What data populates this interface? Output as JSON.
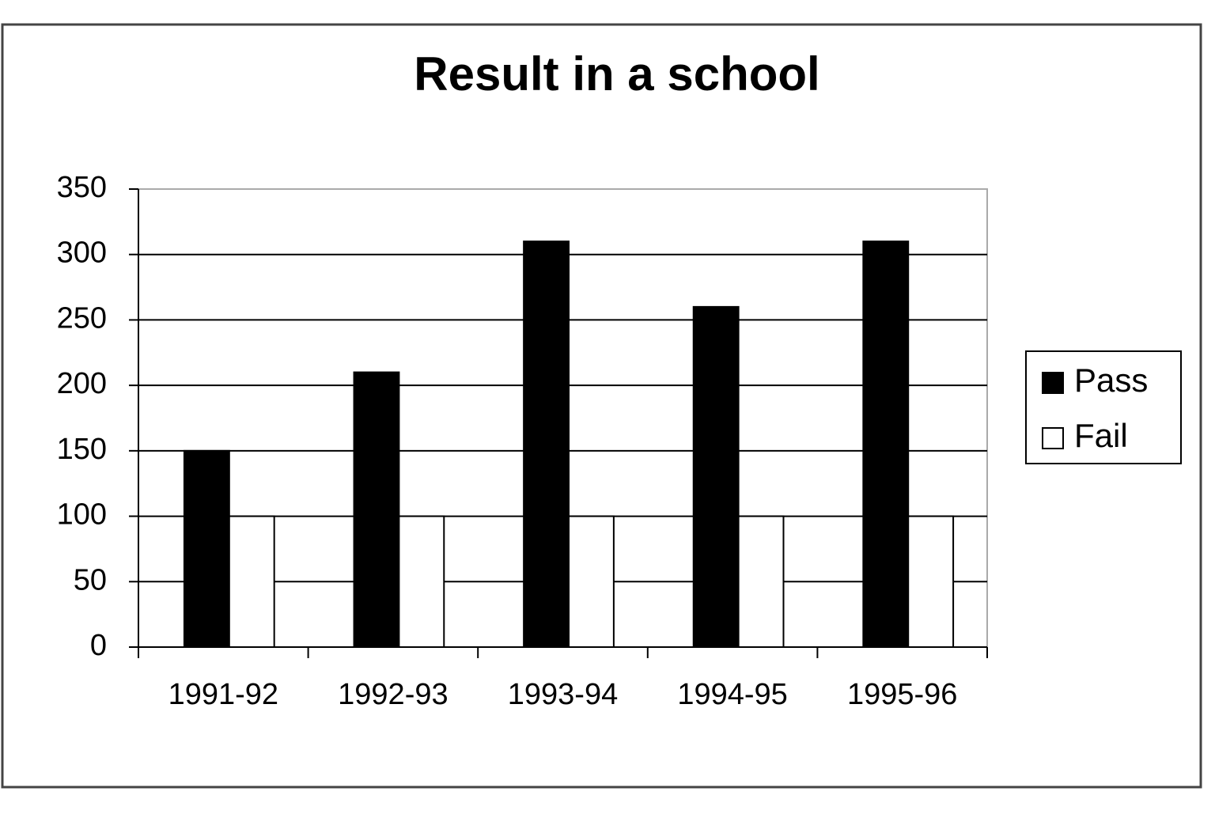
{
  "chart_data": {
    "type": "bar",
    "title": "Result in a school",
    "categories": [
      "1991-92",
      "1992-93",
      "1993-94",
      "1994-95",
      "1995-96"
    ],
    "series": [
      {
        "name": "Pass",
        "color": "#000000",
        "values": [
          150,
          210,
          310,
          260,
          310
        ]
      },
      {
        "name": "Fail",
        "color": "#ffffff",
        "values": [
          100,
          100,
          100,
          100,
          100
        ]
      }
    ],
    "ylim": [
      0,
      350
    ],
    "yticks": [
      0,
      50,
      100,
      150,
      200,
      250,
      300,
      350
    ],
    "grid": true,
    "legend": "right"
  }
}
